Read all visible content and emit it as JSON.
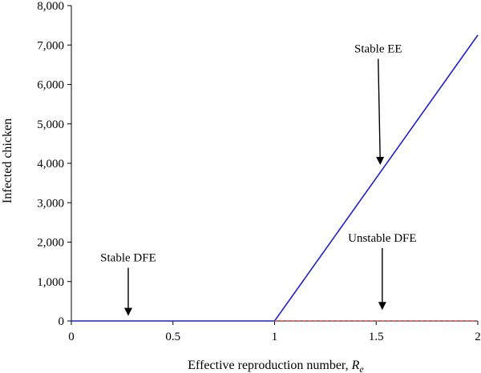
{
  "chart_data": {
    "type": "line",
    "xlabel": "Effective reproduction number, ",
    "xlabel_symbol": "R",
    "xlabel_subscript": "e",
    "ylabel": "Infected chicken",
    "xlim": [
      0,
      2
    ],
    "ylim": [
      0,
      8000
    ],
    "x_ticks": [
      0,
      0.5,
      1,
      1.5,
      2
    ],
    "x_tick_labels": [
      "0",
      "0.5",
      "1",
      "1.5",
      "2"
    ],
    "y_ticks": [
      0,
      1000,
      2000,
      3000,
      4000,
      5000,
      6000,
      7000,
      8000
    ],
    "y_tick_labels": [
      "0",
      "1,000",
      "2,000",
      "3,000",
      "4,000",
      "5,000",
      "6,000",
      "7,000",
      "8,000"
    ],
    "grid": false,
    "series": [
      {
        "color": "#1f1fcc",
        "style": "solid",
        "x": [
          0,
          1,
          1,
          2
        ],
        "y": [
          0,
          0,
          0,
          7250
        ]
      },
      {
        "color": "#e04040",
        "style": "dashed",
        "x": [
          1,
          2
        ],
        "y": [
          0,
          0
        ]
      }
    ],
    "annotations": [
      {
        "text": "Stable EE",
        "arrow_from": [
          1.51,
          6650
        ],
        "arrow_to": [
          1.52,
          3980
        ]
      },
      {
        "text": "Stable DFE",
        "arrow_from": [
          0.28,
          1350
        ],
        "arrow_to": [
          0.28,
          150
        ]
      },
      {
        "text": "Unstable DFE",
        "arrow_from": [
          1.53,
          1850
        ],
        "arrow_to": [
          1.53,
          300
        ]
      }
    ]
  }
}
